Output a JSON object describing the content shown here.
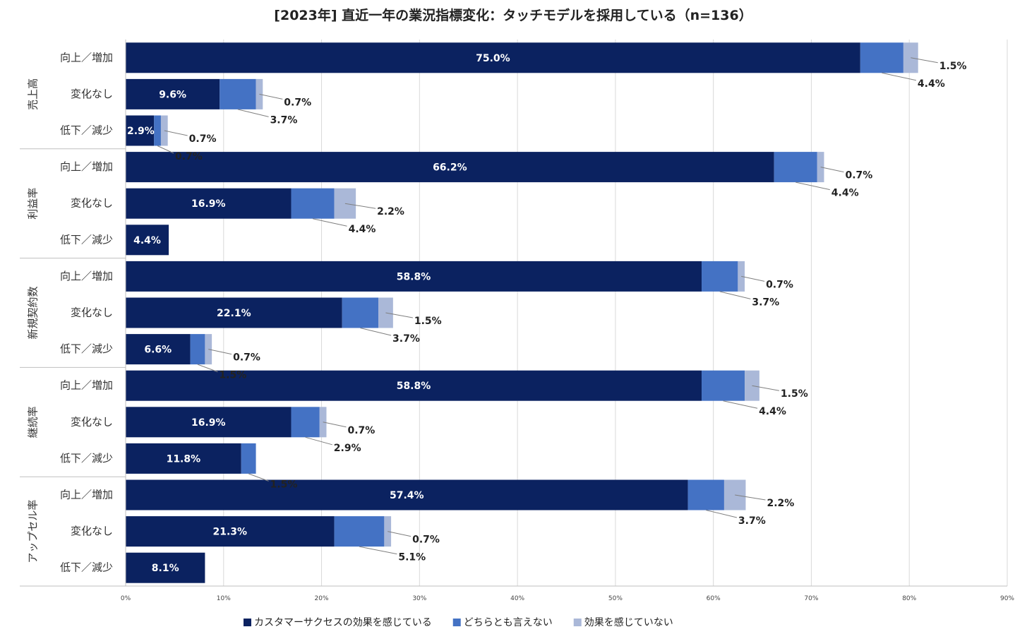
{
  "chart_data": {
    "type": "bar",
    "orientation": "horizontal",
    "stacked": true,
    "title": "[2023年] 直近一年の業況指標変化：タッチモデルを採用している（n=136）",
    "xlim": [
      0,
      90
    ],
    "xticks": [
      "0%",
      "10%",
      "20%",
      "30%",
      "40%",
      "50%",
      "60%",
      "70%",
      "80%",
      "90%"
    ],
    "grid": "vertical",
    "legend_position": "bottom",
    "series": [
      {
        "name": "カスタマーサクセスの効果を感じている",
        "color": "#0b2260"
      },
      {
        "name": "どちらとも言えない",
        "color": "#4472c4"
      },
      {
        "name": "効果を感じていない",
        "color": "#aab8d8"
      }
    ],
    "groups": [
      {
        "name": "売上高",
        "rows": [
          {
            "category": "向上／増加",
            "values": [
              75.0,
              4.4,
              1.5
            ],
            "labels": [
              "75.0%",
              "4.4%",
              "1.5%"
            ]
          },
          {
            "category": "変化なし",
            "values": [
              9.6,
              3.7,
              0.7
            ],
            "labels": [
              "9.6%",
              "3.7%",
              "0.7%"
            ]
          },
          {
            "category": "低下／減少",
            "values": [
              2.9,
              0.7,
              0.7
            ],
            "labels": [
              "2.9%",
              "0.7%",
              "0.7%"
            ]
          }
        ]
      },
      {
        "name": "利益率",
        "rows": [
          {
            "category": "向上／増加",
            "values": [
              66.2,
              4.4,
              0.7
            ],
            "labels": [
              "66.2%",
              "4.4%",
              "0.7%"
            ]
          },
          {
            "category": "変化なし",
            "values": [
              16.9,
              4.4,
              2.2
            ],
            "labels": [
              "16.9%",
              "4.4%",
              "2.2%"
            ]
          },
          {
            "category": "低下／減少",
            "values": [
              4.4,
              0,
              0
            ],
            "labels": [
              "4.4%",
              "",
              ""
            ]
          }
        ]
      },
      {
        "name": "新規契約数",
        "rows": [
          {
            "category": "向上／増加",
            "values": [
              58.8,
              3.7,
              0.7
            ],
            "labels": [
              "58.8%",
              "3.7%",
              "0.7%"
            ]
          },
          {
            "category": "変化なし",
            "values": [
              22.1,
              3.7,
              1.5
            ],
            "labels": [
              "22.1%",
              "3.7%",
              "1.5%"
            ]
          },
          {
            "category": "低下／減少",
            "values": [
              6.6,
              1.5,
              0.7
            ],
            "labels": [
              "6.6%",
              "1.5%",
              "0.7%"
            ]
          }
        ]
      },
      {
        "name": "継続率",
        "rows": [
          {
            "category": "向上／増加",
            "values": [
              58.8,
              4.4,
              1.5
            ],
            "labels": [
              "58.8%",
              "4.4%",
              "1.5%"
            ]
          },
          {
            "category": "変化なし",
            "values": [
              16.9,
              2.9,
              0.7
            ],
            "labels": [
              "16.9%",
              "2.9%",
              "0.7%"
            ]
          },
          {
            "category": "低下／減少",
            "values": [
              11.8,
              1.5,
              0
            ],
            "labels": [
              "11.8%",
              "1.5%",
              ""
            ]
          }
        ]
      },
      {
        "name": "アップセル率",
        "rows": [
          {
            "category": "向上／増加",
            "values": [
              57.4,
              3.7,
              2.2
            ],
            "labels": [
              "57.4%",
              "3.7%",
              "2.2%"
            ]
          },
          {
            "category": "変化なし",
            "values": [
              21.3,
              5.1,
              0.7
            ],
            "labels": [
              "21.3%",
              "5.1%",
              "0.7%"
            ]
          },
          {
            "category": "低下／減少",
            "values": [
              8.1,
              0,
              0
            ],
            "labels": [
              "8.1%",
              "",
              ""
            ]
          }
        ]
      }
    ]
  }
}
